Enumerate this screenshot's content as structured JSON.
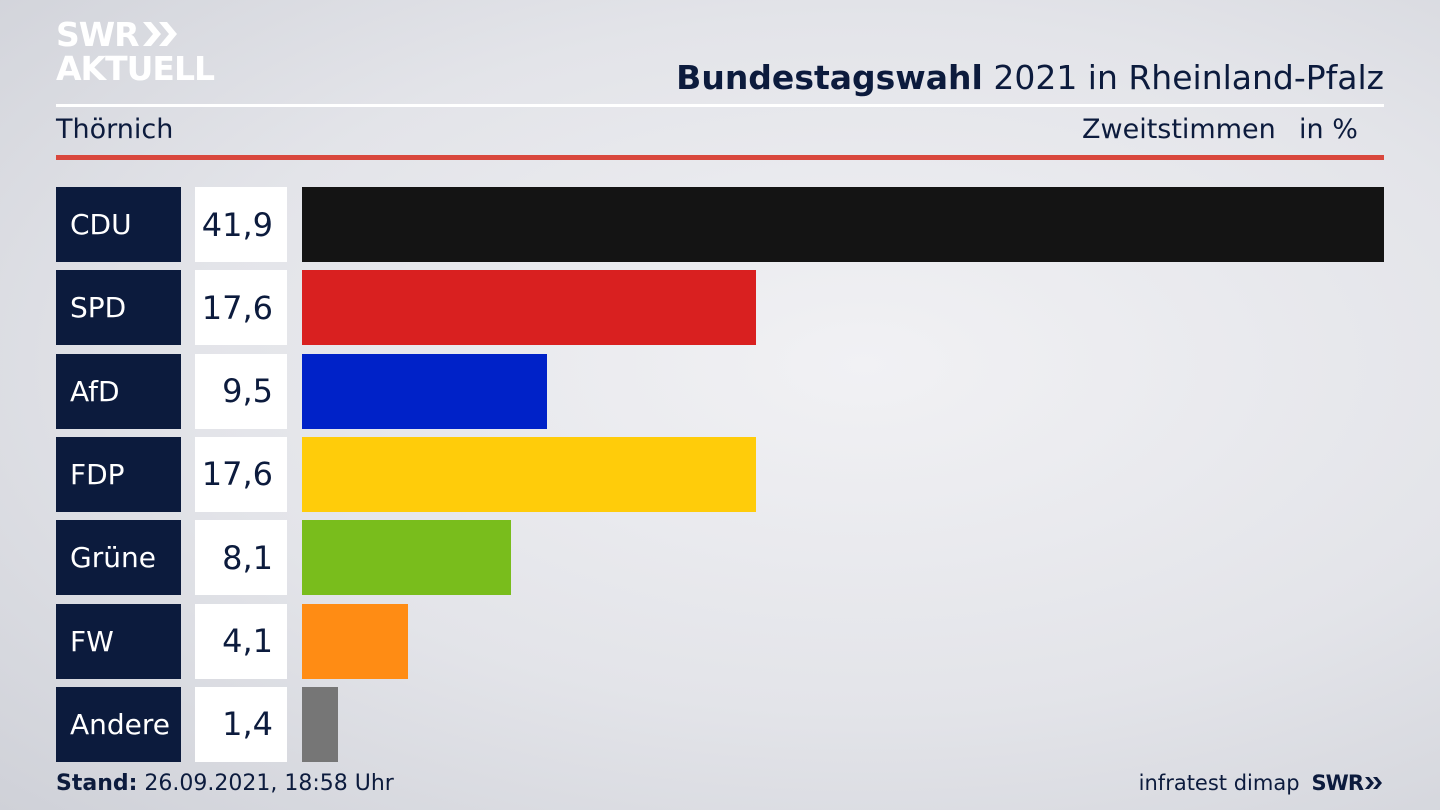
{
  "brand": {
    "line1": "SWR",
    "line2": "AKTUELL",
    "footer_brand": "SWR",
    "icon": "chevron-double-icon"
  },
  "header": {
    "title_bold": "Bundestagswahl",
    "title_rest": "2021 in Rheinland-Pfalz"
  },
  "subheader": {
    "region": "Thörnich",
    "metric": "Zweitstimmen",
    "unit": "in %"
  },
  "colors": {
    "navy": "#0c1b3d",
    "accent_red": "#d9473d"
  },
  "chart_data": {
    "type": "bar",
    "orientation": "horizontal",
    "categories": [
      "CDU",
      "SPD",
      "AfD",
      "FDP",
      "Grüne",
      "FW",
      "Andere"
    ],
    "values": [
      41.9,
      17.6,
      9.5,
      17.6,
      8.1,
      4.1,
      1.4
    ],
    "value_labels": [
      "41,9",
      "17,6",
      "9,5",
      "17,6",
      "8,1",
      "4,1",
      "1,4"
    ],
    "colors": [
      "#141414",
      "#d92020",
      "#0022c8",
      "#ffcc0a",
      "#79bd1c",
      "#ff8c14",
      "#767676"
    ],
    "xlim": [
      0,
      41.9
    ]
  },
  "footer": {
    "stand_label": "Stand:",
    "stand_value": "26.09.2021, 18:58 Uhr",
    "source": "infratest dimap"
  }
}
